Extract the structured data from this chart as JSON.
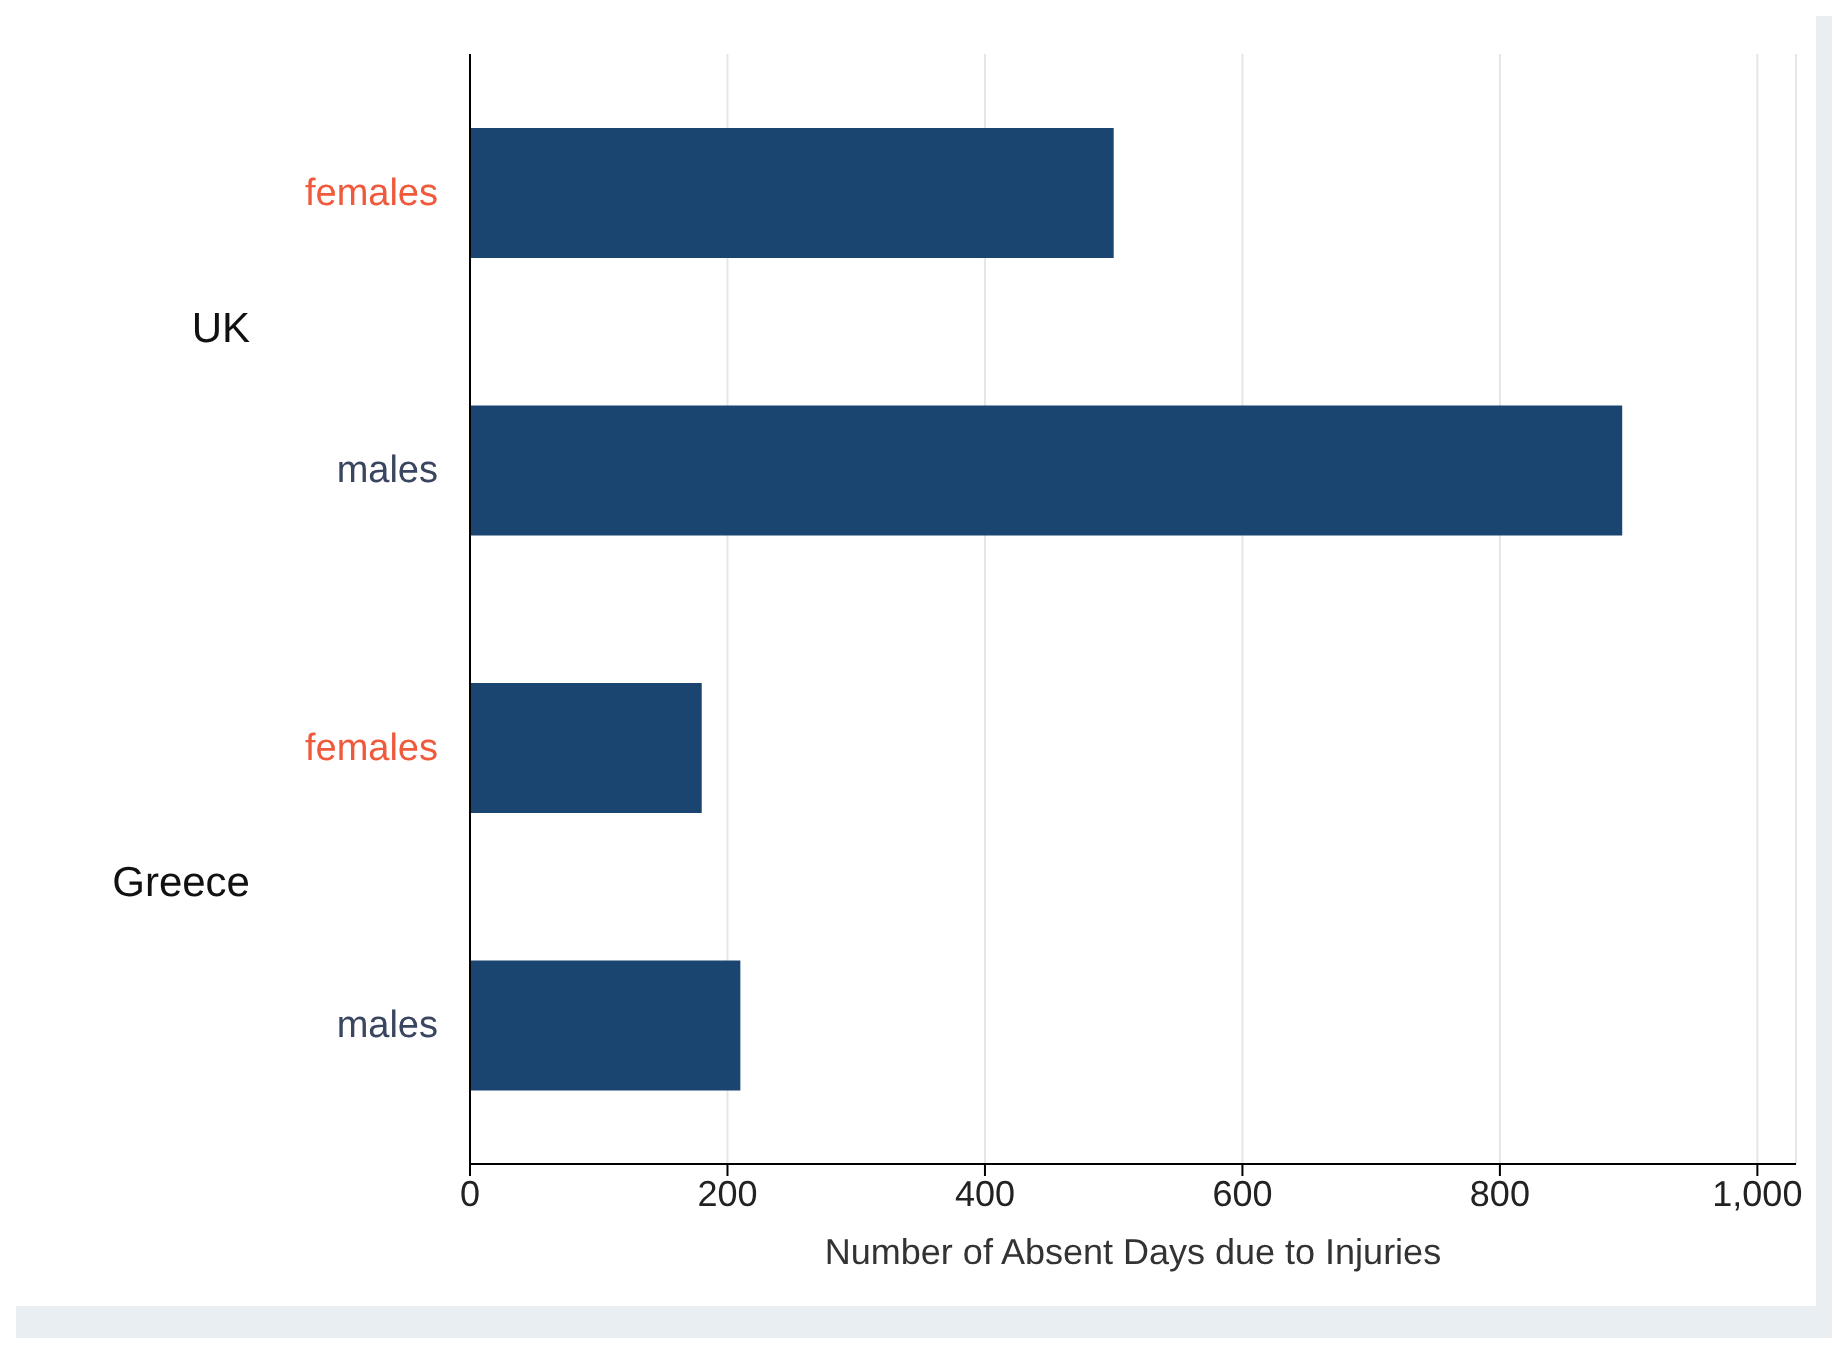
{
  "chart_data": {
    "type": "bar",
    "orientation": "horizontal",
    "categories": [
      "females",
      "males",
      "females",
      "males"
    ],
    "values": [
      500,
      895,
      180,
      210
    ],
    "color": "#1a4570",
    "xlabel": "Number of Absent Days due to Injuries",
    "xlim": [
      0,
      1030
    ],
    "xticks": [
      0,
      200,
      400,
      600,
      800,
      {
        "value": 1000,
        "label": "1,000"
      }
    ],
    "grid": "x",
    "legend": false,
    "annotations": [
      "UK",
      "Greece"
    ]
  }
}
